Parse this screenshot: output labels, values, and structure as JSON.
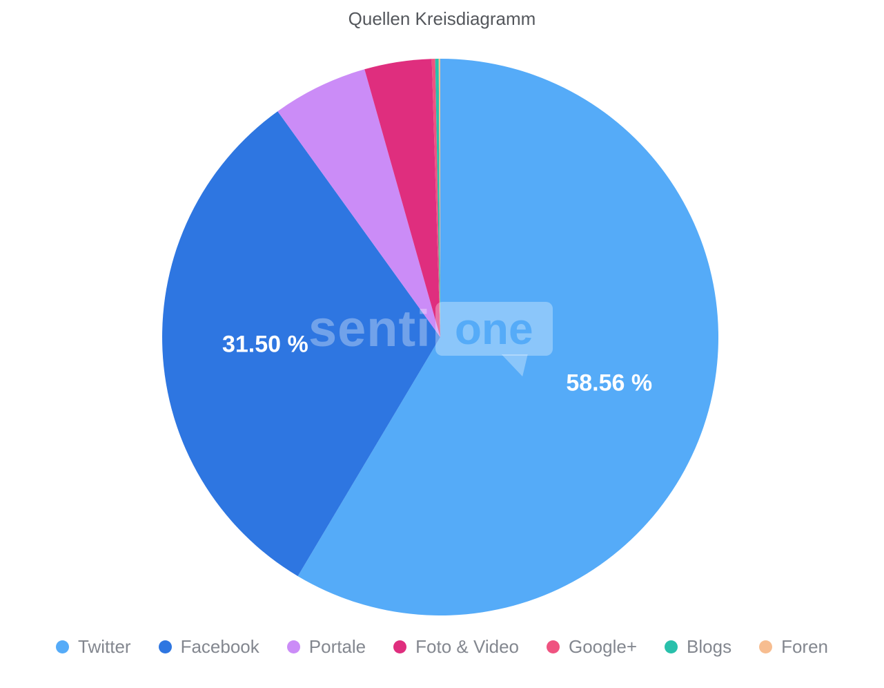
{
  "chart": {
    "title": "Quellen Kreisdiagramm",
    "watermark": {
      "text_left": "senti",
      "text_box": "one"
    }
  },
  "chart_data": {
    "type": "pie",
    "title": "Quellen Kreisdiagramm",
    "start_angle_deg": 0,
    "direction": "clockwise",
    "legend_position": "bottom",
    "background": "#ffffff",
    "label_color": "#ffffff",
    "legend_text_color": "#83878f",
    "title_color": "#54575c",
    "series": [
      {
        "name": "Twitter",
        "value": 58.56,
        "label": "58.56 %",
        "color": "#55abf8"
      },
      {
        "name": "Facebook",
        "value": 31.5,
        "label": "31.50 %",
        "color": "#2e76e1"
      },
      {
        "name": "Portale",
        "value": 5.55,
        "label": "",
        "color": "#cb8cf7"
      },
      {
        "name": "Foto & Video",
        "value": 3.9,
        "label": "",
        "color": "#df2e7e"
      },
      {
        "name": "Google+",
        "value": 0.2,
        "label": "",
        "color": "#ef5380"
      },
      {
        "name": "Blogs",
        "value": 0.2,
        "label": "",
        "color": "#29c0ab"
      },
      {
        "name": "Foren",
        "value": 0.09,
        "label": "",
        "color": "#f7bd90"
      }
    ]
  }
}
